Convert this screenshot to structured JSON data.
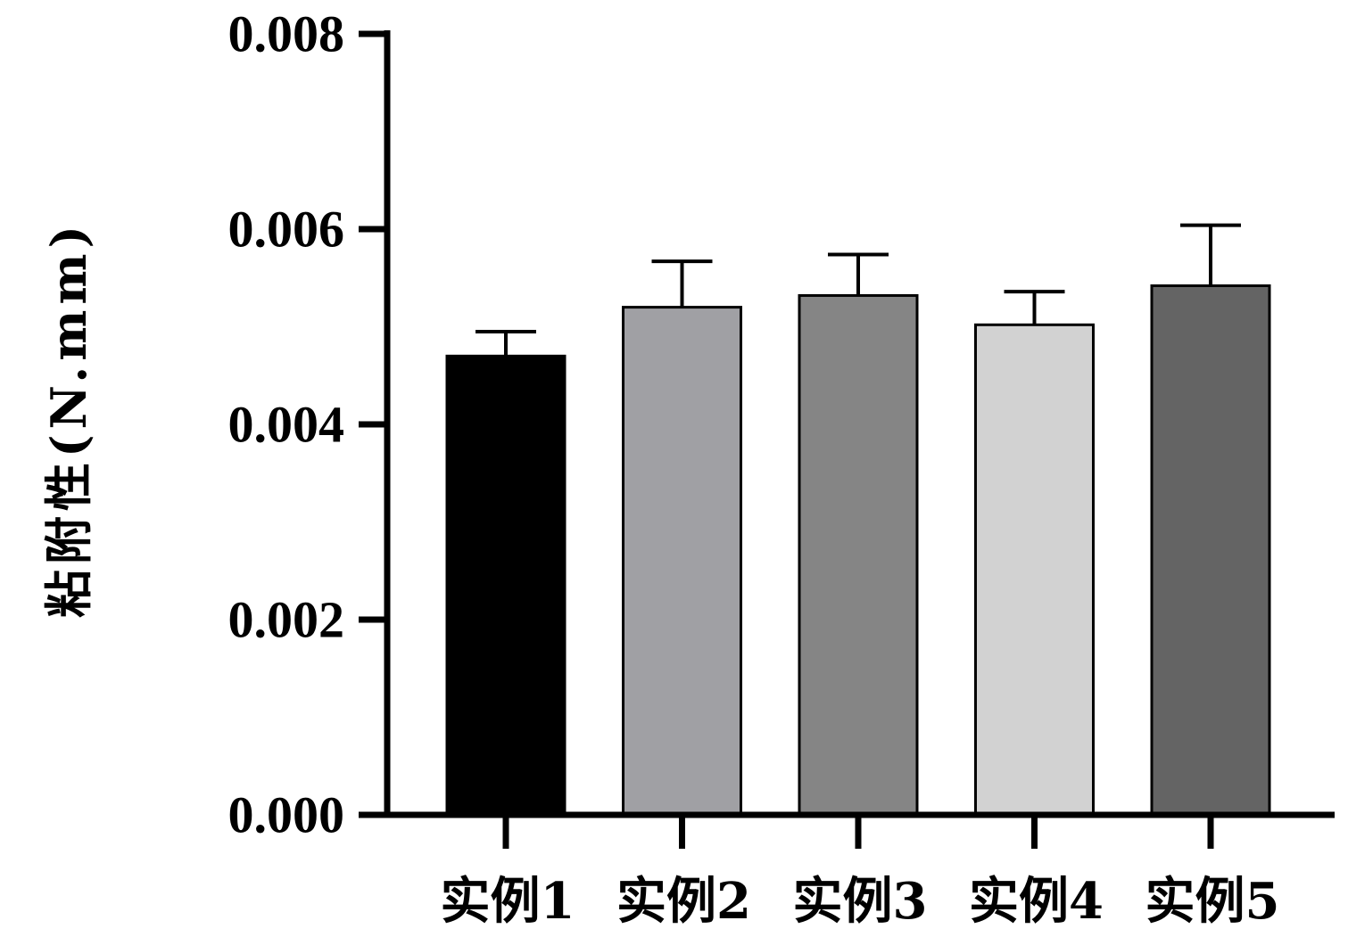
{
  "chart_data": {
    "type": "bar",
    "title": "",
    "xlabel": "",
    "ylabel": "粘附性(N.mm)",
    "categories": [
      "实例1",
      "实例2",
      "实例3",
      "实例4",
      "实例5"
    ],
    "values": [
      0.0047,
      0.0052,
      0.00532,
      0.00502,
      0.00542
    ],
    "error_upper": [
      0.00495,
      0.00567,
      0.00574,
      0.00536,
      0.00604
    ],
    "bar_colors": [
      "#000000",
      "#a0a0a4",
      "#858585",
      "#d2d2d2",
      "#646464"
    ],
    "ylim": [
      0,
      0.008
    ],
    "yticks": [
      0,
      0.002,
      0.004,
      0.006,
      0.008
    ],
    "ytick_labels": [
      "0.000",
      "0.002",
      "0.004",
      "0.006",
      "0.008"
    ],
    "grid": false,
    "legend": "none"
  }
}
